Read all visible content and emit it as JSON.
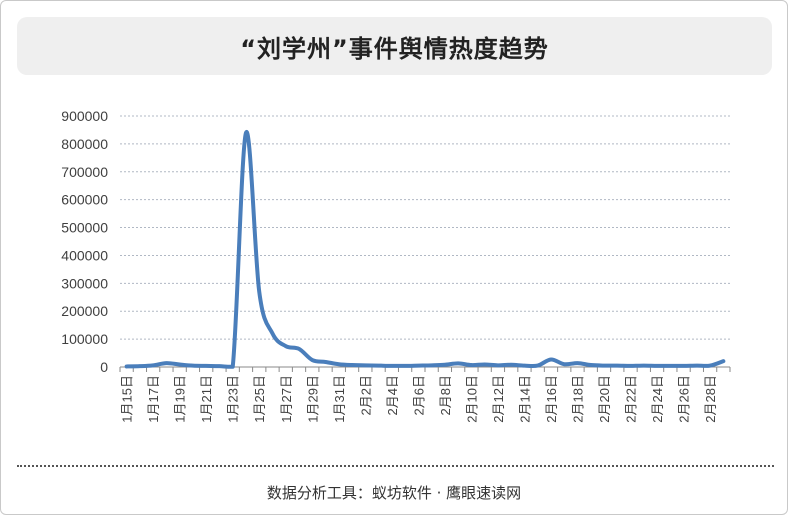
{
  "header": {
    "title": "“刘学州”事件舆情热度趋势"
  },
  "footer": {
    "source": "数据分析工具：蚁坊软件 · 鹰眼速读网"
  },
  "colors": {
    "line": "#4a7ebb",
    "grid": "#b0b8c4",
    "axis": "#8a8a8a"
  },
  "chart_data": {
    "type": "line",
    "title": "“刘学州”事件舆情热度趋势",
    "xlabel": "",
    "ylabel": "",
    "ylim": [
      0,
      900000
    ],
    "yticks": [
      "0",
      "100000",
      "200000",
      "300000",
      "400000",
      "500000",
      "600000",
      "700000",
      "800000",
      "900000"
    ],
    "xtick_labels": [
      "1月15日",
      "1月17日",
      "1月19日",
      "1月21日",
      "1月23日",
      "1月25日",
      "1月27日",
      "1月29日",
      "1月31日",
      "2月2日",
      "2月4日",
      "2月6日",
      "2月8日",
      "2月10日",
      "2月12日",
      "2月14日",
      "2月16日",
      "2月18日",
      "2月20日",
      "2月22日",
      "2月24日",
      "2月26日",
      "2月28日"
    ],
    "grid": true,
    "legend": "none",
    "categories": [
      "1月15日",
      "1月16日",
      "1月17日",
      "1月18日",
      "1月19日",
      "1月20日",
      "1月21日",
      "1月22日",
      "1月23日",
      "1月24日",
      "1月25日",
      "1月26日",
      "1月27日",
      "1月28日",
      "1月29日",
      "1月30日",
      "1月31日",
      "2月1日",
      "2月2日",
      "2月3日",
      "2月4日",
      "2月5日",
      "2月6日",
      "2月7日",
      "2月8日",
      "2月9日",
      "2月10日",
      "2月11日",
      "2月12日",
      "2月13日",
      "2月14日",
      "2月15日",
      "2月16日",
      "2月17日",
      "2月18日",
      "2月19日",
      "2月20日",
      "2月21日",
      "2月22日",
      "2月23日",
      "2月24日",
      "2月25日",
      "2月26日",
      "2月27日",
      "2月28日",
      "3月1日"
    ],
    "values": [
      2000,
      3000,
      6000,
      14000,
      9000,
      5000,
      4000,
      3000,
      1000,
      840000,
      270000,
      120000,
      75000,
      65000,
      25000,
      18000,
      10000,
      7000,
      6000,
      5000,
      4000,
      4000,
      5000,
      6000,
      8000,
      13000,
      7000,
      9000,
      6000,
      8000,
      5000,
      5000,
      27000,
      10000,
      14000,
      7000,
      5000,
      5000,
      4000,
      5000,
      4000,
      4000,
      4000,
      5000,
      5000,
      21000
    ]
  }
}
